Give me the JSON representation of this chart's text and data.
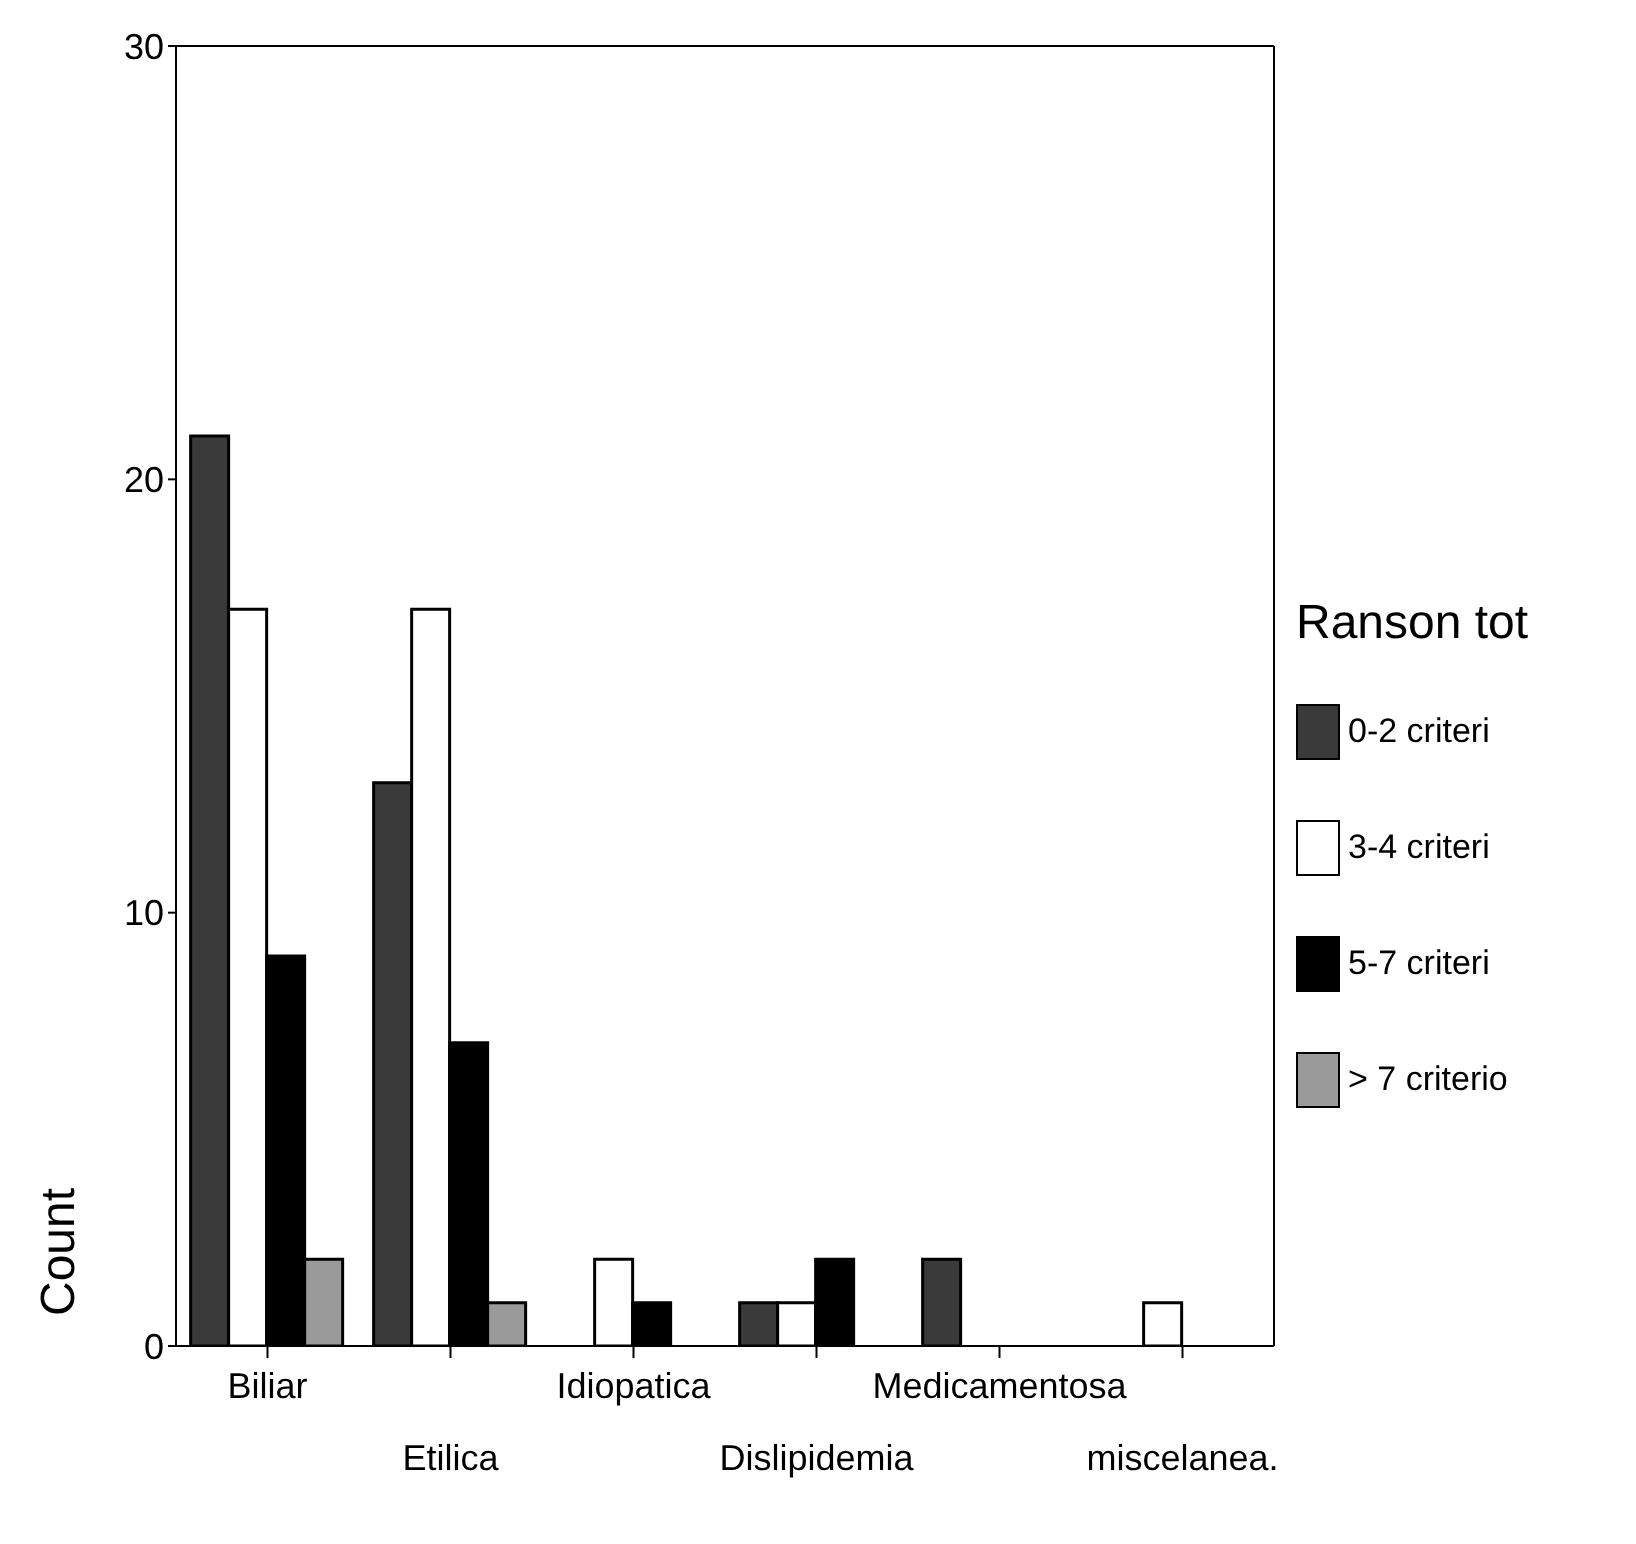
{
  "chart_data": {
    "type": "bar",
    "ylabel": "Count",
    "legend_title": "Ranson tot",
    "categories": [
      "Biliar",
      "Etilica",
      "Idiopatica",
      "Dislipidemia",
      "Medicamentosa",
      "miscelanea."
    ],
    "series": [
      {
        "name": "0-2 criteri",
        "color": "#3a3a3a",
        "values": [
          21,
          13,
          0,
          1,
          2,
          0
        ]
      },
      {
        "name": "3-4 criteri",
        "color": "#ffffff",
        "values": [
          17,
          17,
          2,
          1,
          0,
          1
        ]
      },
      {
        "name": "5-7 criteri",
        "color": "#000000",
        "values": [
          9,
          7,
          1,
          2,
          0,
          0
        ]
      },
      {
        "name": "> 7 criterio",
        "color": "#9a9a9a",
        "values": [
          2,
          1,
          0,
          0,
          0,
          0
        ]
      }
    ],
    "ylim": [
      0,
      30
    ],
    "yticks": [
      0,
      10,
      20,
      30
    ],
    "grid": false,
    "legend": "right"
  }
}
